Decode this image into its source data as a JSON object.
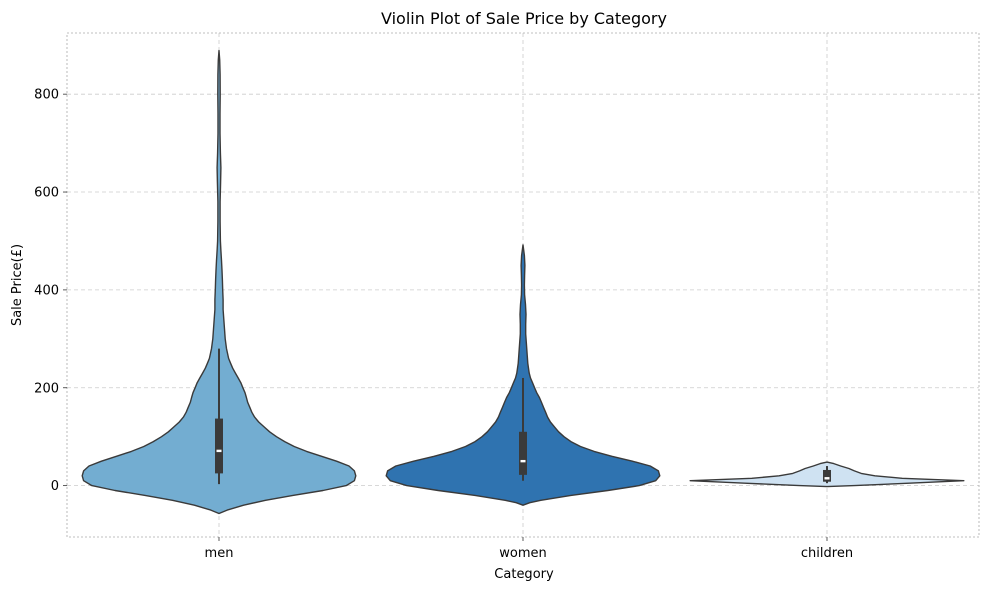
{
  "chart_data": {
    "type": "violin",
    "title": "Violin Plot of Sale Price by Category",
    "xlabel": "Category",
    "ylabel": "Sale Price(£)",
    "ylim": [
      -105,
      925
    ],
    "yticks": [
      0,
      200,
      400,
      600,
      800
    ],
    "grid": true,
    "categories": [
      "men",
      "women",
      "children"
    ],
    "colors": [
      "#73add1",
      "#2f73b0",
      "#cfe2f2"
    ],
    "series": [
      {
        "category": "men",
        "width": 0.9,
        "whisker": [
          3,
          280
        ],
        "box": [
          25,
          137
        ],
        "median": 71,
        "density": [
          [
            -57,
            0.0
          ],
          [
            -50,
            0.06
          ],
          [
            -40,
            0.18
          ],
          [
            -30,
            0.34
          ],
          [
            -20,
            0.54
          ],
          [
            -10,
            0.76
          ],
          [
            0,
            0.93
          ],
          [
            10,
            0.99
          ],
          [
            20,
            1.0
          ],
          [
            30,
            0.99
          ],
          [
            40,
            0.95
          ],
          [
            50,
            0.86
          ],
          [
            60,
            0.75
          ],
          [
            70,
            0.64
          ],
          [
            80,
            0.55
          ],
          [
            90,
            0.48
          ],
          [
            100,
            0.42
          ],
          [
            110,
            0.37
          ],
          [
            120,
            0.33
          ],
          [
            130,
            0.29
          ],
          [
            140,
            0.26
          ],
          [
            150,
            0.24
          ],
          [
            160,
            0.225
          ],
          [
            170,
            0.21
          ],
          [
            180,
            0.2
          ],
          [
            190,
            0.19
          ],
          [
            200,
            0.175
          ],
          [
            210,
            0.16
          ],
          [
            220,
            0.14
          ],
          [
            230,
            0.12
          ],
          [
            240,
            0.1
          ],
          [
            250,
            0.085
          ],
          [
            260,
            0.07
          ],
          [
            280,
            0.055
          ],
          [
            300,
            0.045
          ],
          [
            320,
            0.04
          ],
          [
            340,
            0.035
          ],
          [
            360,
            0.03
          ],
          [
            380,
            0.03
          ],
          [
            400,
            0.027
          ],
          [
            420,
            0.025
          ],
          [
            440,
            0.022
          ],
          [
            460,
            0.018
          ],
          [
            480,
            0.014
          ],
          [
            500,
            0.01
          ],
          [
            540,
            0.008
          ],
          [
            580,
            0.008
          ],
          [
            620,
            0.012
          ],
          [
            650,
            0.014
          ],
          [
            680,
            0.01
          ],
          [
            720,
            0.007
          ],
          [
            760,
            0.007
          ],
          [
            800,
            0.009
          ],
          [
            840,
            0.008
          ],
          [
            870,
            0.005
          ],
          [
            889,
            0.0
          ]
        ]
      },
      {
        "category": "women",
        "width": 0.9,
        "whisker": [
          10,
          220
        ],
        "box": [
          22,
          110
        ],
        "median": 50,
        "density": [
          [
            -40,
            0.0
          ],
          [
            -35,
            0.05
          ],
          [
            -30,
            0.13
          ],
          [
            -20,
            0.35
          ],
          [
            -10,
            0.62
          ],
          [
            0,
            0.85
          ],
          [
            10,
            0.97
          ],
          [
            20,
            1.0
          ],
          [
            30,
            0.99
          ],
          [
            40,
            0.93
          ],
          [
            50,
            0.8
          ],
          [
            60,
            0.65
          ],
          [
            70,
            0.52
          ],
          [
            80,
            0.42
          ],
          [
            90,
            0.35
          ],
          [
            100,
            0.3
          ],
          [
            110,
            0.26
          ],
          [
            120,
            0.23
          ],
          [
            130,
            0.2
          ],
          [
            140,
            0.18
          ],
          [
            150,
            0.165
          ],
          [
            160,
            0.15
          ],
          [
            170,
            0.135
          ],
          [
            180,
            0.12
          ],
          [
            190,
            0.1
          ],
          [
            200,
            0.085
          ],
          [
            210,
            0.07
          ],
          [
            220,
            0.055
          ],
          [
            230,
            0.045
          ],
          [
            250,
            0.035
          ],
          [
            270,
            0.03
          ],
          [
            290,
            0.025
          ],
          [
            310,
            0.02
          ],
          [
            330,
            0.02
          ],
          [
            350,
            0.022
          ],
          [
            370,
            0.018
          ],
          [
            390,
            0.012
          ],
          [
            410,
            0.01
          ],
          [
            430,
            0.012
          ],
          [
            450,
            0.014
          ],
          [
            470,
            0.01
          ],
          [
            492,
            0.0
          ]
        ]
      },
      {
        "category": "children",
        "width": 0.9,
        "whisker": [
          5,
          40
        ],
        "box": [
          8,
          32
        ],
        "median": 15,
        "density": [
          [
            -2,
            0.0
          ],
          [
            0,
            0.2
          ],
          [
            5,
            0.6
          ],
          [
            10,
            1.0
          ],
          [
            15,
            0.55
          ],
          [
            20,
            0.35
          ],
          [
            25,
            0.25
          ],
          [
            30,
            0.2
          ],
          [
            35,
            0.16
          ],
          [
            40,
            0.1
          ],
          [
            45,
            0.05
          ],
          [
            48,
            0.0
          ]
        ]
      }
    ]
  }
}
